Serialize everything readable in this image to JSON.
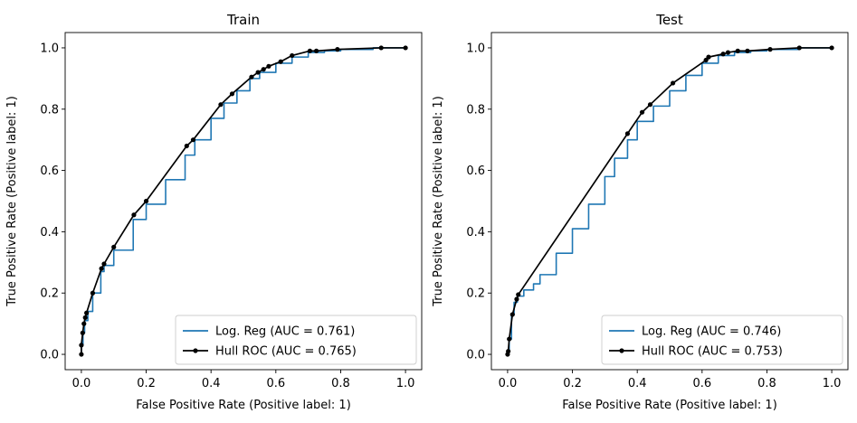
{
  "chart_data": [
    {
      "type": "line",
      "title": "Train",
      "xlabel": "False Positive Rate (Positive label: 1)",
      "ylabel": "True Positive Rate (Positive label: 1)",
      "xlim": [
        -0.05,
        1.05
      ],
      "ylim": [
        -0.05,
        1.05
      ],
      "xticks": [
        "0.0",
        "0.2",
        "0.4",
        "0.6",
        "0.8",
        "1.0"
      ],
      "yticks": [
        "0.0",
        "0.2",
        "0.4",
        "0.6",
        "0.8",
        "1.0"
      ],
      "grid": false,
      "legend_position": "lower-right",
      "series": [
        {
          "name": "Log. Reg (AUC = 0.761)",
          "color": "#1f77b4",
          "marker": "none",
          "x": [
            0.0,
            0.0,
            0.005,
            0.01,
            0.02,
            0.035,
            0.06,
            0.07,
            0.1,
            0.16,
            0.2,
            0.26,
            0.32,
            0.35,
            0.4,
            0.44,
            0.48,
            0.52,
            0.55,
            0.6,
            0.65,
            0.7,
            0.75,
            0.8,
            0.9,
            1.0
          ],
          "y": [
            0.0,
            0.03,
            0.07,
            0.11,
            0.14,
            0.2,
            0.27,
            0.29,
            0.34,
            0.44,
            0.49,
            0.57,
            0.65,
            0.7,
            0.77,
            0.82,
            0.86,
            0.9,
            0.92,
            0.95,
            0.97,
            0.985,
            0.99,
            0.995,
            1.0,
            1.0
          ]
        },
        {
          "name": "Hull ROC (AUC = 0.765)",
          "color": "#000000",
          "marker": "circle",
          "x": [
            0.0,
            0.0,
            0.004,
            0.008,
            0.012,
            0.016,
            0.035,
            0.062,
            0.07,
            0.1,
            0.162,
            0.2,
            0.325,
            0.345,
            0.43,
            0.465,
            0.525,
            0.545,
            0.562,
            0.578,
            0.615,
            0.65,
            0.705,
            0.725,
            0.79,
            0.925,
            1.0
          ],
          "y": [
            0.0,
            0.03,
            0.07,
            0.1,
            0.12,
            0.135,
            0.2,
            0.28,
            0.295,
            0.35,
            0.455,
            0.5,
            0.68,
            0.7,
            0.815,
            0.85,
            0.905,
            0.92,
            0.93,
            0.94,
            0.955,
            0.975,
            0.99,
            0.99,
            0.995,
            1.0,
            1.0
          ]
        }
      ]
    },
    {
      "type": "line",
      "title": "Test",
      "xlabel": "False Positive Rate (Positive label: 1)",
      "ylabel": "True Positive Rate (Positive label: 1)",
      "xlim": [
        -0.05,
        1.05
      ],
      "ylim": [
        -0.05,
        1.05
      ],
      "xticks": [
        "0.0",
        "0.2",
        "0.4",
        "0.6",
        "0.8",
        "1.0"
      ],
      "yticks": [
        "0.0",
        "0.2",
        "0.4",
        "0.6",
        "0.8",
        "1.0"
      ],
      "grid": false,
      "legend_position": "lower-right",
      "series": [
        {
          "name": "Log. Reg (AUC = 0.746)",
          "color": "#1f77b4",
          "marker": "none",
          "x": [
            0.0,
            0.0,
            0.005,
            0.012,
            0.02,
            0.03,
            0.05,
            0.08,
            0.1,
            0.15,
            0.2,
            0.25,
            0.3,
            0.33,
            0.37,
            0.4,
            0.45,
            0.5,
            0.55,
            0.6,
            0.65,
            0.7,
            0.75,
            0.8,
            0.9,
            1.0
          ],
          "y": [
            0.0,
            0.01,
            0.05,
            0.13,
            0.17,
            0.19,
            0.21,
            0.23,
            0.26,
            0.33,
            0.41,
            0.49,
            0.58,
            0.64,
            0.7,
            0.76,
            0.81,
            0.86,
            0.91,
            0.95,
            0.975,
            0.985,
            0.99,
            0.995,
            1.0,
            1.0
          ]
        },
        {
          "name": "Hull ROC (AUC = 0.753)",
          "color": "#000000",
          "marker": "circle",
          "x": [
            0.0,
            0.002,
            0.005,
            0.015,
            0.028,
            0.033,
            0.37,
            0.415,
            0.44,
            0.51,
            0.612,
            0.62,
            0.665,
            0.68,
            0.71,
            0.74,
            0.81,
            0.9,
            1.0
          ],
          "y": [
            0.0,
            0.01,
            0.05,
            0.13,
            0.18,
            0.195,
            0.72,
            0.79,
            0.815,
            0.885,
            0.96,
            0.97,
            0.98,
            0.985,
            0.99,
            0.99,
            0.995,
            1.0,
            1.0
          ]
        }
      ]
    }
  ]
}
